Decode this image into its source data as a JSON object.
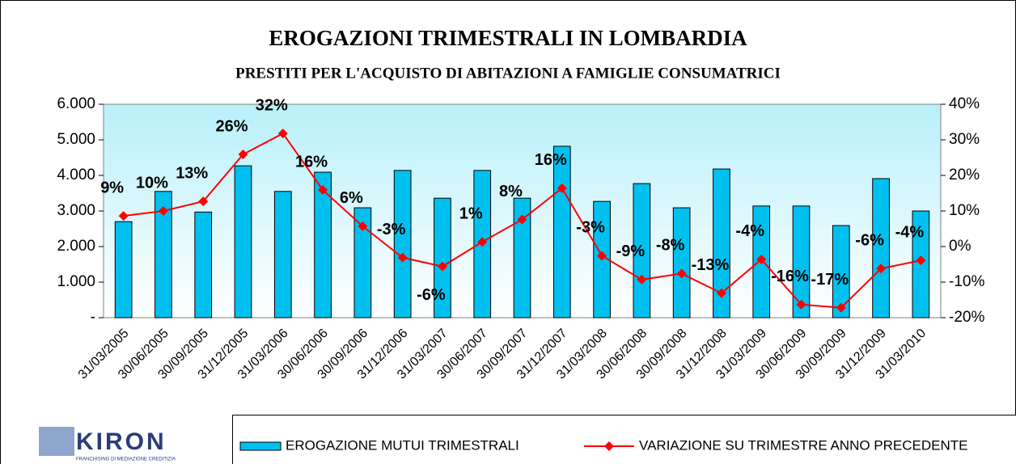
{
  "chart_data": {
    "type": "bar_line",
    "title": "EROGAZIONI TRIMESTRALI IN LOMBARDIA",
    "subtitle": "PRESTITI PER L'ACQUISTO DI ABITAZIONI A FAMIGLIE CONSUMATRICI",
    "categories": [
      "31/03/2005",
      "30/06/2005",
      "30/09/2005",
      "31/12/2005",
      "31/03/2006",
      "30/06/2006",
      "30/09/2006",
      "31/12/2006",
      "31/03/2007",
      "30/06/2007",
      "30/09/2007",
      "31/12/2007",
      "31/03/2008",
      "30/06/2008",
      "30/09/2008",
      "31/12/2008",
      "31/03/2009",
      "30/06/2009",
      "30/09/2009",
      "31/12/2009",
      "31/03/2010"
    ],
    "series": [
      {
        "name": "EROGAZIONE MUTUI TRIMESTRALI",
        "type": "bar",
        "color": "#00c0f0",
        "values": [
          2700,
          3550,
          2970,
          4270,
          3550,
          4090,
          3090,
          4140,
          3360,
          4140,
          3360,
          4820,
          3270,
          3770,
          3090,
          4180,
          3140,
          3140,
          2590,
          3910,
          3000
        ]
      },
      {
        "name": "VARIAZIONE SU TRIMESTRE ANNO PRECEDENTE",
        "type": "line",
        "color": "#ff0000",
        "axis": "y2",
        "values": [
          8.6,
          10,
          12.7,
          25.9,
          31.8,
          15.9,
          5.7,
          -3.1,
          -5.6,
          1.3,
          7.6,
          16.4,
          -2.6,
          -9.3,
          -7.6,
          -13.1,
          -3.6,
          -16.3,
          -17.2,
          -6.2,
          -3.9
        ],
        "value_labels": [
          "9%",
          "10%",
          "13%",
          "26%",
          "32%",
          "16%",
          "6%",
          "-3%",
          "-6%",
          "1%",
          "8%",
          "16%",
          "-3%",
          "-9%",
          "-8%",
          "-13%",
          "-4%",
          "-16%",
          "-17%",
          "-6%",
          "-4%"
        ]
      }
    ],
    "ylim": [
      0,
      6000
    ],
    "yticks": [
      {
        "value": 0,
        "label": "-"
      },
      {
        "value": 1000,
        "label": "1.000"
      },
      {
        "value": 2000,
        "label": "2.000"
      },
      {
        "value": 3000,
        "label": "3.000"
      },
      {
        "value": 4000,
        "label": "4.000"
      },
      {
        "value": 5000,
        "label": "5.000"
      },
      {
        "value": 6000,
        "label": "6.000"
      }
    ],
    "y2lim": [
      -20,
      40
    ],
    "y2ticks": [
      {
        "value": -20,
        "label": "-20%"
      },
      {
        "value": -10,
        "label": "-10%"
      },
      {
        "value": 0,
        "label": "0%"
      },
      {
        "value": 10,
        "label": "10%"
      },
      {
        "value": 20,
        "label": "20%"
      },
      {
        "value": 30,
        "label": "30%"
      },
      {
        "value": 40,
        "label": "40%"
      }
    ],
    "legend": "bottom"
  },
  "logo": {
    "name": "KIRON",
    "tagline": "FRANCHISING DI MEDIAZIONE CREDITIZIA"
  }
}
